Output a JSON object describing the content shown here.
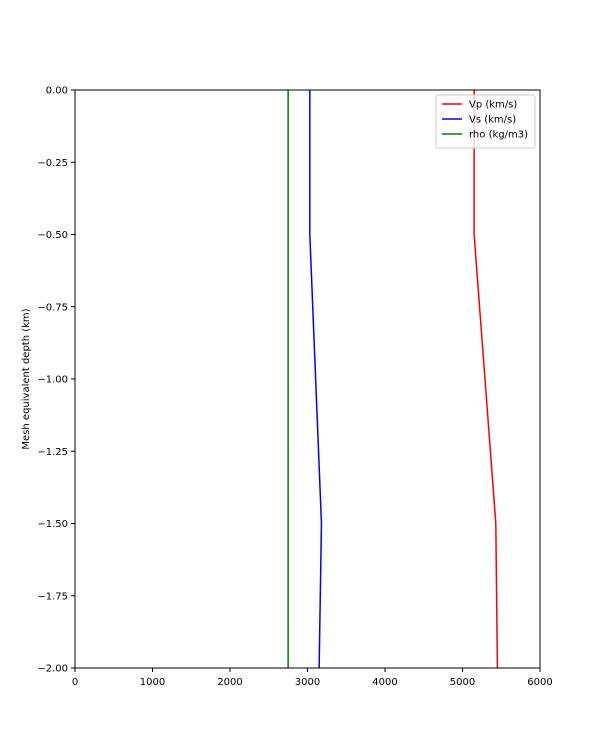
{
  "chart_data": {
    "type": "line",
    "title": "",
    "xlabel": "",
    "ylabel": "Mesh equivalent depth (km)",
    "xlim": [
      0,
      6000
    ],
    "ylim": [
      -2.0,
      0.0
    ],
    "xticks": [
      0,
      1000,
      2000,
      3000,
      4000,
      5000,
      6000
    ],
    "xtick_labels": [
      "0",
      "1000",
      "2000",
      "3000",
      "4000",
      "5000",
      "6000"
    ],
    "yticks": [
      0.0,
      -0.25,
      -0.5,
      -0.75,
      -1.0,
      -1.25,
      -1.5,
      -1.75,
      -2.0
    ],
    "ytick_labels": [
      "0.00",
      "−0.25",
      "−0.50",
      "−0.75",
      "−1.00",
      "−1.25",
      "−1.50",
      "−1.75",
      "−2.00"
    ],
    "grid": false,
    "legend_position": "top-right",
    "series": [
      {
        "name": "Vp (km/s)",
        "color": "#ff0000",
        "points": [
          [
            5150,
            0.0
          ],
          [
            5150,
            -0.5
          ],
          [
            5430,
            -1.5
          ],
          [
            5450,
            -2.0
          ]
        ]
      },
      {
        "name": "Vs (km/s)",
        "color": "#0000ff",
        "points": [
          [
            3030,
            0.0
          ],
          [
            3030,
            -0.5
          ],
          [
            3180,
            -1.5
          ],
          [
            3150,
            -2.0
          ]
        ]
      },
      {
        "name": "rho (kg/m3)",
        "color": "#008000",
        "points": [
          [
            2750,
            0.0
          ],
          [
            2750,
            -2.0
          ]
        ]
      }
    ]
  }
}
